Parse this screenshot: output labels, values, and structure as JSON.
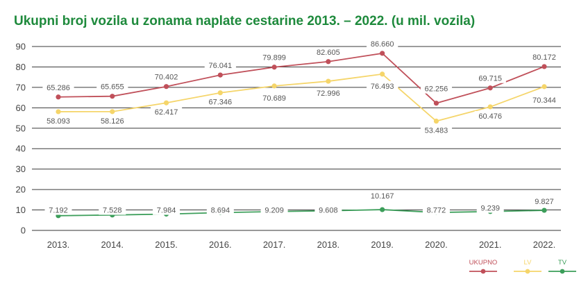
{
  "chart_data": {
    "type": "line",
    "title": "Ukupni broj vozila u zonama naplate cestarine 2013. – 2022. (u mil. vozila)",
    "categories": [
      "2013.",
      "2014.",
      "2015.",
      "2016.",
      "2017.",
      "2018.",
      "2019.",
      "2020.",
      "2021.",
      "2022."
    ],
    "ylim": [
      0,
      90
    ],
    "yticks": [
      0,
      10,
      20,
      30,
      40,
      50,
      60,
      70,
      80,
      90
    ],
    "grid": true,
    "legend_position": "bottom-right",
    "series": [
      {
        "name": "UKUPNO",
        "color": "#c0505a",
        "values": [
          65.286,
          65.655,
          70.402,
          76.041,
          79.899,
          82.605,
          86.66,
          62.256,
          69.715,
          80.172
        ],
        "labels": [
          "65.286",
          "65.655",
          "70.402",
          "76.041",
          "79.899",
          "82.605",
          "86.660",
          "62.256",
          "69.715",
          "80.172"
        ]
      },
      {
        "name": "LV",
        "color": "#f5d56a",
        "values": [
          58.093,
          58.126,
          62.417,
          67.346,
          70.689,
          72.996,
          76.493,
          53.483,
          60.476,
          70.344
        ],
        "labels": [
          "58.093",
          "58.126",
          "62.417",
          "67.346",
          "70.689",
          "72.996",
          "76.493",
          "53.483",
          "60.476",
          "70.344"
        ]
      },
      {
        "name": "TV",
        "color": "#3c9e5a",
        "values": [
          7.192,
          7.528,
          7.984,
          8.694,
          9.209,
          9.608,
          10.167,
          8.772,
          9.239,
          9.827
        ],
        "labels": [
          "7.192",
          "7.528",
          "7.984",
          "8.694",
          "9.209",
          "9.608",
          "10.167",
          "8.772",
          "9.239",
          "9.827"
        ]
      }
    ]
  }
}
